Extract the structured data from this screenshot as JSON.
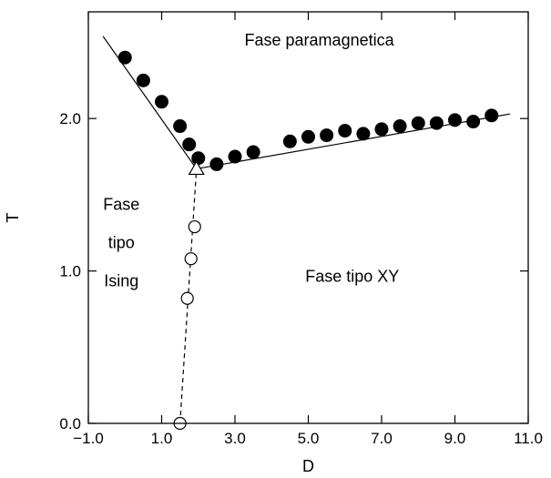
{
  "chart_data": {
    "type": "scatter",
    "title": "",
    "xlabel": "D",
    "ylabel": "T",
    "xlim": [
      -1.0,
      11.0
    ],
    "ylim": [
      0.0,
      2.7
    ],
    "grid": false,
    "x_ticks": [
      {
        "value": -1.0,
        "label": "−1.0"
      },
      {
        "value": 1.0,
        "label": "1.0"
      },
      {
        "value": 3.0,
        "label": "3.0"
      },
      {
        "value": 5.0,
        "label": "5.0"
      },
      {
        "value": 7.0,
        "label": "7.0"
      },
      {
        "value": 9.0,
        "label": "9.0"
      },
      {
        "value": 11.0,
        "label": "11.0"
      }
    ],
    "y_ticks": [
      {
        "value": 0.0,
        "label": "0.0"
      },
      {
        "value": 1.0,
        "label": "1.0"
      },
      {
        "value": 2.0,
        "label": "2.0"
      }
    ],
    "series": [
      {
        "marker": "filled-circle",
        "color": "#000000",
        "x": [
          0.0,
          0.5,
          1.0,
          1.5,
          1.75,
          2.0,
          2.5,
          3.0,
          3.5,
          4.5,
          5.0,
          5.5,
          6.0,
          6.5,
          7.0,
          7.5,
          8.0,
          8.5,
          9.0,
          9.5,
          10.0
        ],
        "y": [
          2.4,
          2.25,
          2.11,
          1.95,
          1.83,
          1.74,
          1.7,
          1.75,
          1.78,
          1.85,
          1.88,
          1.89,
          1.92,
          1.9,
          1.93,
          1.95,
          1.97,
          1.97,
          1.99,
          1.98,
          2.02
        ]
      },
      {
        "marker": "open-circle",
        "color": "#000000",
        "x": [
          1.5,
          1.7,
          1.8,
          1.9
        ],
        "y": [
          0.0,
          0.82,
          1.08,
          1.29
        ]
      },
      {
        "marker": "open-triangle",
        "color": "#000000",
        "x": [
          1.95
        ],
        "y": [
          1.67
        ]
      }
    ],
    "lines": [
      {
        "style": "solid",
        "x": [
          -0.6,
          1.95
        ],
        "y": [
          2.54,
          1.67
        ]
      },
      {
        "style": "solid",
        "x": [
          1.95,
          10.5
        ],
        "y": [
          1.67,
          2.03
        ]
      },
      {
        "style": "dashed",
        "x": [
          1.5,
          1.95
        ],
        "y": [
          0.0,
          1.67
        ]
      }
    ],
    "annotations": [
      {
        "text": "Fase paramagnetica",
        "x": 5.3,
        "y": 2.48
      },
      {
        "text": "Fase",
        "x": -0.1,
        "y": 1.4
      },
      {
        "text": "tipo",
        "x": -0.1,
        "y": 1.15
      },
      {
        "text": "Ising",
        "x": -0.1,
        "y": 0.9
      },
      {
        "text": "Fase tipo XY",
        "x": 6.2,
        "y": 0.93
      }
    ]
  }
}
